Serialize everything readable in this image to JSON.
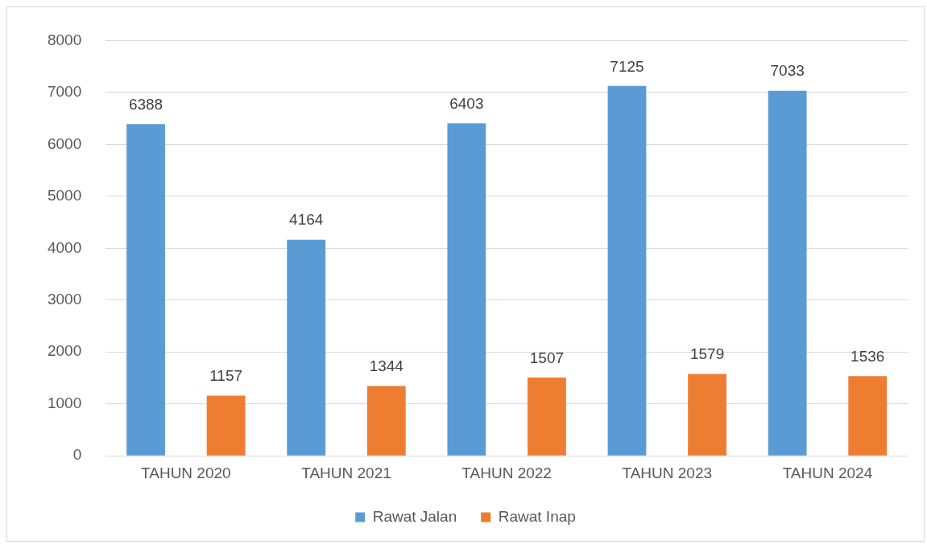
{
  "chart_data": {
    "type": "bar",
    "categories": [
      "TAHUN 2020",
      "TAHUN 2021",
      "TAHUN 2022",
      "TAHUN 2023",
      "TAHUN 2024"
    ],
    "series": [
      {
        "name": "Rawat Jalan",
        "color": "#5b9bd5",
        "values": [
          6388,
          4164,
          6403,
          7125,
          7033
        ]
      },
      {
        "name": "Rawat Inap",
        "color": "#ed7d31",
        "values": [
          1157,
          1344,
          1507,
          1579,
          1536
        ]
      }
    ],
    "ylim": [
      0,
      8000
    ],
    "yticks": [
      0,
      1000,
      2000,
      3000,
      4000,
      5000,
      6000,
      7000,
      8000
    ],
    "grid": "y",
    "legend": "bottom",
    "data_labels": true
  }
}
